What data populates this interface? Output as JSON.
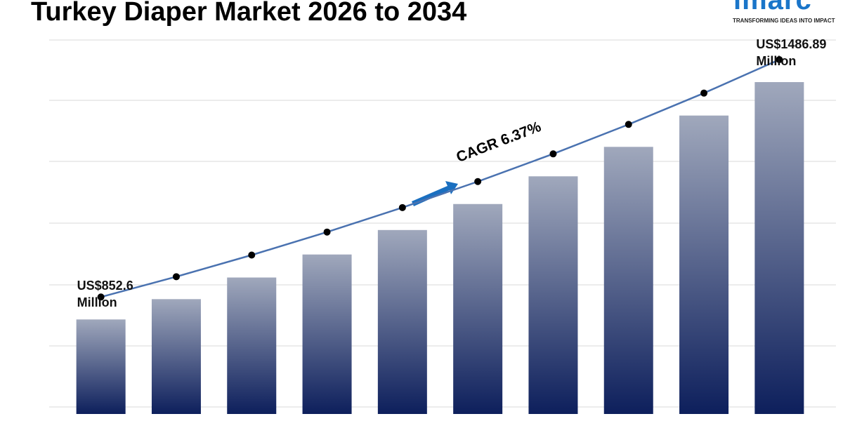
{
  "chart_data": {
    "type": "bar",
    "title": "Turkey Diaper Market 2026 to 2034",
    "categories": [
      null,
      null,
      null,
      null,
      null,
      null,
      null,
      null,
      null,
      null
    ],
    "values": [
      852.6,
      906.9,
      964.7,
      1026.2,
      1091.6,
      1161.1,
      1235.1,
      1313.8,
      1397.5,
      1486.89
    ],
    "value_labels": [
      "US$852.6 Million",
      null,
      null,
      null,
      null,
      null,
      null,
      null,
      null,
      "US$1486.89 Million"
    ],
    "ylim": [
      600,
      1500
    ],
    "trend_line": true,
    "cagr_label": "CAGR 6.37%",
    "color": "#0d1f5c",
    "line_color": "#4a72b0"
  },
  "logo": {
    "name": "imarc",
    "tagline": "TRANSFORMING IDEAS INTO IMPACT"
  }
}
